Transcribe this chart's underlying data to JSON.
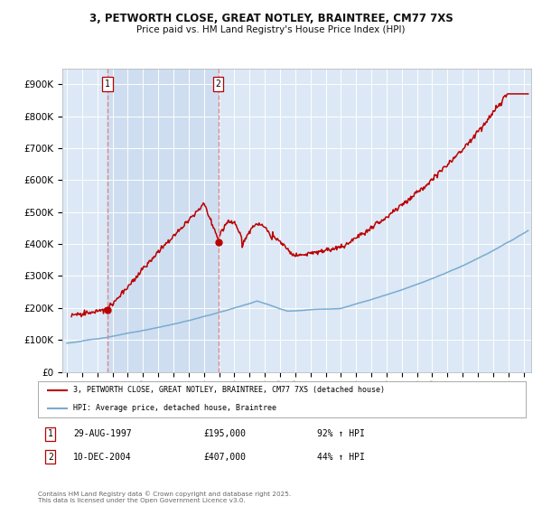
{
  "title_line1": "3, PETWORTH CLOSE, GREAT NOTLEY, BRAINTREE, CM77 7XS",
  "title_line2": "Price paid vs. HM Land Registry's House Price Index (HPI)",
  "background_color": "#ffffff",
  "plot_background": "#dce8f5",
  "plot_background2": "#c8dff0",
  "grid_color": "#ffffff",
  "ylim": [
    0,
    950000
  ],
  "yticks": [
    0,
    100000,
    200000,
    300000,
    400000,
    500000,
    600000,
    700000,
    800000,
    900000
  ],
  "ytick_labels": [
    "£0",
    "£100K",
    "£200K",
    "£300K",
    "£400K",
    "£500K",
    "£600K",
    "£700K",
    "£800K",
    "£900K"
  ],
  "xlim_start": 1994.7,
  "xlim_end": 2025.5,
  "sale1_x": 1997.66,
  "sale1_y": 195000,
  "sale1_label": "1",
  "sale1_date": "29-AUG-1997",
  "sale1_price": "£195,000",
  "sale1_hpi": "92% ↑ HPI",
  "sale2_x": 2004.94,
  "sale2_y": 407000,
  "sale2_label": "2",
  "sale2_date": "10-DEC-2004",
  "sale2_price": "£407,000",
  "sale2_hpi": "44% ↑ HPI",
  "red_color": "#bb0000",
  "blue_color": "#7aabcf",
  "vline_color": "#dd8888",
  "shade_color": "#ccddf0",
  "legend_label_red": "3, PETWORTH CLOSE, GREAT NOTLEY, BRAINTREE, CM77 7XS (detached house)",
  "legend_label_blue": "HPI: Average price, detached house, Braintree",
  "footnote": "Contains HM Land Registry data © Crown copyright and database right 2025.\nThis data is licensed under the Open Government Licence v3.0.",
  "xticks": [
    1995,
    1996,
    1997,
    1998,
    1999,
    2000,
    2001,
    2002,
    2003,
    2004,
    2005,
    2006,
    2007,
    2008,
    2009,
    2010,
    2011,
    2012,
    2013,
    2014,
    2015,
    2016,
    2017,
    2018,
    2019,
    2020,
    2021,
    2022,
    2023,
    2024,
    2025
  ]
}
